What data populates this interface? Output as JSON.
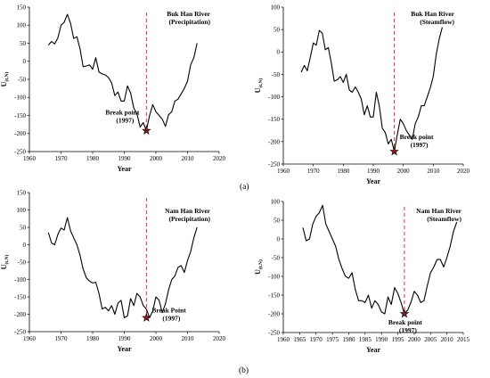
{
  "panel_labels": [
    "(a)",
    "(b)"
  ],
  "chart_data": [
    {
      "type": "line",
      "title": "Buk Han River\n(Precipitation)",
      "xlabel": "Year",
      "ylabel": "U(t,N)",
      "xlim": [
        1960,
        2020
      ],
      "ylim": [
        -250,
        150
      ],
      "xticks": [
        1960,
        1970,
        1980,
        1990,
        2000,
        2010,
        2020
      ],
      "yticks": [
        150,
        100,
        50,
        0,
        -50,
        -100,
        -150,
        -200,
        -250
      ],
      "series": [
        {
          "x": [
            1966,
            1967,
            1968,
            1969,
            1970,
            1971,
            1972,
            1973,
            1974,
            1975,
            1976,
            1977,
            1978,
            1979,
            1980,
            1981,
            1982,
            1983,
            1984,
            1985,
            1986,
            1987,
            1988,
            1989,
            1990,
            1991,
            1992,
            1993,
            1994,
            1995,
            1996,
            1997,
            1998,
            1999,
            2000,
            2001,
            2002,
            2003,
            2004,
            2005,
            2006,
            2007,
            2008,
            2009,
            2010,
            2011,
            2012,
            2013
          ],
          "y": [
            45,
            55,
            48,
            65,
            100,
            108,
            130,
            105,
            63,
            68,
            35,
            -15,
            -13,
            -10,
            -22,
            10,
            -30,
            -35,
            -38,
            -45,
            -60,
            -95,
            -85,
            -110,
            -110,
            -68,
            -88,
            -130,
            -145,
            -182,
            -170,
            -192,
            -150,
            -120,
            -140,
            -150,
            -160,
            -180,
            -148,
            -140,
            -110,
            -105,
            -90,
            -75,
            -55,
            -10,
            10,
            50
          ]
        }
      ],
      "annotation": {
        "text": "Break point\n(1997)",
        "x": 1997,
        "y": -192
      },
      "break_line_x": 1997
    },
    {
      "type": "line",
      "title": "Buk Han River\n(Steamflow)",
      "xlabel": "Year",
      "ylabel": "U(t,N)",
      "xlim": [
        1960,
        2020
      ],
      "ylim": [
        -250,
        100
      ],
      "xticks": [
        1960,
        1970,
        1980,
        1990,
        2000,
        2010,
        2020
      ],
      "yticks": [
        100,
        50,
        0,
        -50,
        -100,
        -150,
        -200,
        -250
      ],
      "series": [
        {
          "x": [
            1966,
            1967,
            1968,
            1969,
            1970,
            1971,
            1972,
            1973,
            1974,
            1975,
            1976,
            1977,
            1978,
            1979,
            1980,
            1981,
            1982,
            1983,
            1984,
            1985,
            1986,
            1987,
            1988,
            1989,
            1990,
            1991,
            1992,
            1993,
            1994,
            1995,
            1996,
            1997,
            1998,
            1999,
            2000,
            2001,
            2002,
            2003,
            2004,
            2005,
            2006,
            2007,
            2008,
            2009,
            2010,
            2011,
            2012,
            2013
          ],
          "y": [
            -45,
            -30,
            -42,
            -12,
            20,
            15,
            48,
            42,
            5,
            10,
            -25,
            -65,
            -62,
            -55,
            -68,
            -50,
            -85,
            -90,
            -78,
            -90,
            -105,
            -140,
            -120,
            -145,
            -145,
            -90,
            -120,
            -170,
            -180,
            -205,
            -195,
            -222,
            -185,
            -150,
            -160,
            -175,
            -185,
            -195,
            -160,
            -145,
            -120,
            -120,
            -100,
            -80,
            -55,
            -5,
            30,
            55
          ]
        }
      ],
      "annotation": {
        "text": "Break point\n(1997)",
        "x": 1997,
        "y": -222
      },
      "break_line_x": 1997
    },
    {
      "type": "line",
      "title": "Nam Han River\n(Precipitation)",
      "xlabel": "Year",
      "ylabel": "U(t,N)",
      "xlim": [
        1960,
        2020
      ],
      "ylim": [
        -250,
        150
      ],
      "xticks": [
        1960,
        1970,
        1980,
        1990,
        2000,
        2010,
        2020
      ],
      "yticks": [
        150,
        100,
        50,
        0,
        -50,
        -100,
        -150,
        -200,
        -250
      ],
      "series": [
        {
          "x": [
            1966,
            1967,
            1968,
            1969,
            1970,
            1971,
            1972,
            1973,
            1974,
            1975,
            1976,
            1977,
            1978,
            1979,
            1980,
            1981,
            1982,
            1983,
            1984,
            1985,
            1986,
            1987,
            1988,
            1989,
            1990,
            1991,
            1992,
            1993,
            1994,
            1995,
            1996,
            1997,
            1998,
            1999,
            2000,
            2001,
            2002,
            2003,
            2004,
            2005,
            2006,
            2007,
            2008,
            2009,
            2010,
            2011,
            2012,
            2013
          ],
          "y": [
            35,
            5,
            0,
            30,
            48,
            42,
            78,
            40,
            20,
            0,
            -30,
            -70,
            -95,
            -105,
            -110,
            -108,
            -140,
            -185,
            -180,
            -190,
            -175,
            -200,
            -168,
            -160,
            -210,
            -205,
            -155,
            -175,
            -140,
            -150,
            -175,
            -185,
            -210,
            -190,
            -150,
            -160,
            -195,
            -170,
            -130,
            -100,
            -90,
            -65,
            -60,
            -80,
            -45,
            -20,
            20,
            50
          ]
        }
      ],
      "annotation": {
        "text": "Break Point\n(1997)",
        "x": 1997,
        "y": -210
      },
      "break_line_x": 1997
    },
    {
      "type": "line",
      "title": "Nam Han River\n(Steamflow)",
      "xlabel": "Year",
      "ylabel": "U(t,N)",
      "xlim": [
        1960,
        2015
      ],
      "ylim": [
        -250,
        100
      ],
      "xticks": [
        1960,
        1965,
        1970,
        1975,
        1980,
        1985,
        1990,
        1995,
        2000,
        2005,
        2010,
        2015
      ],
      "yticks": [
        100,
        50,
        0,
        -50,
        -100,
        -150,
        -200,
        -250
      ],
      "series": [
        {
          "x": [
            1966,
            1967,
            1968,
            1969,
            1970,
            1971,
            1972,
            1973,
            1974,
            1975,
            1976,
            1977,
            1978,
            1979,
            1980,
            1981,
            1982,
            1983,
            1984,
            1985,
            1986,
            1987,
            1988,
            1989,
            1990,
            1991,
            1992,
            1993,
            1994,
            1995,
            1996,
            1997,
            1998,
            1999,
            2000,
            2001,
            2002,
            2003,
            2004,
            2005,
            2006,
            2007,
            2008,
            2009,
            2010,
            2011,
            2012,
            2013
          ],
          "y": [
            30,
            -5,
            0,
            40,
            60,
            70,
            90,
            40,
            20,
            0,
            -20,
            -55,
            -80,
            -100,
            -105,
            -90,
            -135,
            -165,
            -165,
            -170,
            -150,
            -185,
            -165,
            -175,
            -195,
            -200,
            -155,
            -175,
            -130,
            -145,
            -170,
            -200,
            -190,
            -170,
            -140,
            -150,
            -170,
            -165,
            -125,
            -90,
            -75,
            -55,
            -55,
            -75,
            -50,
            -20,
            20,
            45
          ]
        }
      ],
      "annotation": {
        "text": "Break point\n(1997)",
        "x": 1997,
        "y": -200
      },
      "break_line_x": 1997
    }
  ]
}
